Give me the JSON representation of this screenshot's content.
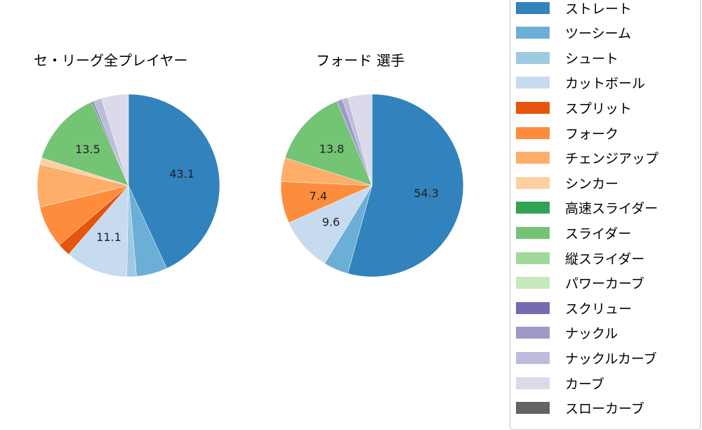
{
  "colors": {
    "ストレート": "#3182bd",
    "ツーシーム": "#6baed6",
    "シュート": "#9ecae1",
    "カットボール": "#c6dbef",
    "スプリット": "#e6550d",
    "フォーク": "#fd8d3c",
    "チェンジアップ": "#fdae6b",
    "シンカー": "#fdd0a2",
    "高速スライダー": "#31a354",
    "スライダー": "#74c476",
    "縦スライダー": "#a1d99b",
    "パワーカーブ": "#c7e9c0",
    "スクリュー": "#756bb1",
    "ナックル": "#9e9ac8",
    "ナックルカーブ": "#bcbddc",
    "カーブ": "#dadaeb",
    "スローカーブ": "#636363"
  },
  "legend": {
    "items": [
      "ストレート",
      "ツーシーム",
      "シュート",
      "カットボール",
      "スプリット",
      "フォーク",
      "チェンジアップ",
      "シンカー",
      "高速スライダー",
      "スライダー",
      "縦スライダー",
      "パワーカーブ",
      "スクリュー",
      "ナックル",
      "ナックルカーブ",
      "カーブ",
      "スローカーブ"
    ]
  },
  "chart_data": [
    {
      "type": "pie",
      "title": "セ・リーグ全プレイヤー",
      "categories": [
        "ストレート",
        "ツーシーム",
        "シュート",
        "カットボール",
        "スプリット",
        "フォーク",
        "チェンジアップ",
        "シンカー",
        "スライダー",
        "スクリュー",
        "ナックルカーブ",
        "カーブ"
      ],
      "values": [
        43.1,
        5.5,
        1.7,
        11.1,
        2.3,
        7.5,
        7.5,
        1.2,
        13.5,
        0.3,
        1.5,
        4.8
      ],
      "labels_shown": [
        "43.1",
        "",
        "",
        "11.1",
        "",
        "",
        "",
        "",
        "13.5",
        "",
        "",
        ""
      ],
      "start_angle": 90,
      "direction": "clockwise"
    },
    {
      "type": "pie",
      "title": "フォード  選手",
      "categories": [
        "ストレート",
        "ツーシーム",
        "カットボール",
        "フォーク",
        "チェンジアップ",
        "スライダー",
        "ナックル",
        "ナックルカーブ",
        "カーブ"
      ],
      "values": [
        54.3,
        4.4,
        9.6,
        7.4,
        4.2,
        13.8,
        1.0,
        1.0,
        4.3
      ],
      "labels_shown": [
        "54.3",
        "",
        "9.6",
        "7.4",
        "",
        "13.8",
        "",
        "",
        ""
      ],
      "start_angle": 90,
      "direction": "clockwise"
    }
  ]
}
